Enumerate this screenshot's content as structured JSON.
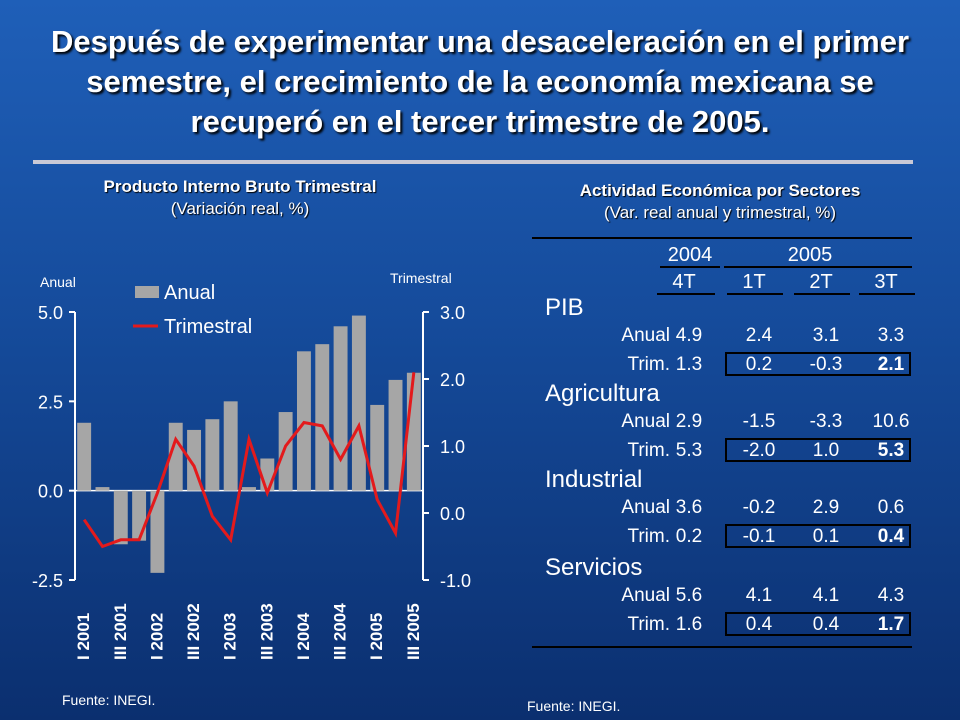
{
  "page": {
    "title": "Después de experimentar una desaceleración en el primer semestre, el crecimiento de la economía mexicana se recuperó en el tercer trimestre de 2005."
  },
  "left_chart": {
    "title": "Producto Interno Bruto Trimestral",
    "subtitle": "(Variación real, %)",
    "source": "Fuente: INEGI."
  },
  "right_table": {
    "title": "Actividad Económica por Sectores",
    "subtitle": "(Var. real anual y trimestral, %)",
    "source": "Fuente: INEGI.",
    "years": [
      "2004",
      "2005"
    ],
    "quarters": [
      "4T",
      "1T",
      "2T",
      "3T"
    ],
    "sections": [
      {
        "name": "PIB",
        "rows": [
          {
            "label": "Anual",
            "values": [
              "4.9",
              "2.4",
              "3.1",
              "3.3"
            ]
          },
          {
            "label": "Trim.",
            "values": [
              "1.3",
              "0.2",
              "-0.3",
              "2.1"
            ]
          }
        ]
      },
      {
        "name": "Agricultura",
        "rows": [
          {
            "label": "Anual",
            "values": [
              "2.9",
              "-1.5",
              "-3.3",
              "10.6"
            ]
          },
          {
            "label": "Trim.",
            "values": [
              "5.3",
              "-2.0",
              "1.0",
              "5.3"
            ]
          }
        ]
      },
      {
        "name": "Industrial",
        "rows": [
          {
            "label": "Anual",
            "values": [
              "3.6",
              "-0.2",
              "2.9",
              "0.6"
            ]
          },
          {
            "label": "Trim.",
            "values": [
              "0.2",
              "-0.1",
              "0.1",
              "0.4"
            ]
          }
        ]
      },
      {
        "name": "Servicios",
        "rows": [
          {
            "label": "Anual",
            "values": [
              "5.6",
              "4.1",
              "4.1",
              "4.3"
            ]
          },
          {
            "label": "Trim.",
            "values": [
              "1.6",
              "0.4",
              "0.4",
              "1.7"
            ]
          }
        ]
      }
    ]
  },
  "chart_data": {
    "type": "bar",
    "title": "Producto Interno Bruto Trimestral",
    "y_left_label": "Anual",
    "y_right_label": "Trimestral",
    "y_left_range": [
      -2.5,
      5.0
    ],
    "y_left_ticks": [
      "5.0",
      "2.5",
      "0.0",
      "-2.5"
    ],
    "y_right_range": [
      -1.0,
      3.0
    ],
    "y_right_ticks": [
      "3.0",
      "2.0",
      "1.0",
      "0.0",
      "-1.0"
    ],
    "x_tick_labels": [
      "I 2001",
      "III 2001",
      "I 2002",
      "III 2002",
      "I 2003",
      "III 2003",
      "I 2004",
      "III 2004",
      "I 2005",
      "III 2005"
    ],
    "legend": [
      "Anual",
      "Trimestral"
    ],
    "legend_position": "top-left",
    "bar_color": "#a6a6a6",
    "line_color": "#e31a1c",
    "series": [
      {
        "name": "Anual",
        "axis": "left",
        "values": [
          1.9,
          0.1,
          -1.5,
          -1.4,
          -2.3,
          1.9,
          1.7,
          2.0,
          2.5,
          0.1,
          0.9,
          2.2,
          3.9,
          4.1,
          4.6,
          4.9,
          2.4,
          3.1,
          3.3
        ]
      },
      {
        "name": "Trimestral",
        "axis": "right",
        "values": [
          -0.1,
          -0.5,
          -0.4,
          -0.4,
          0.3,
          1.1,
          0.7,
          -0.05,
          -0.4,
          1.1,
          0.3,
          1.0,
          1.35,
          1.3,
          0.8,
          1.3,
          0.2,
          -0.3,
          2.1
        ]
      }
    ]
  }
}
